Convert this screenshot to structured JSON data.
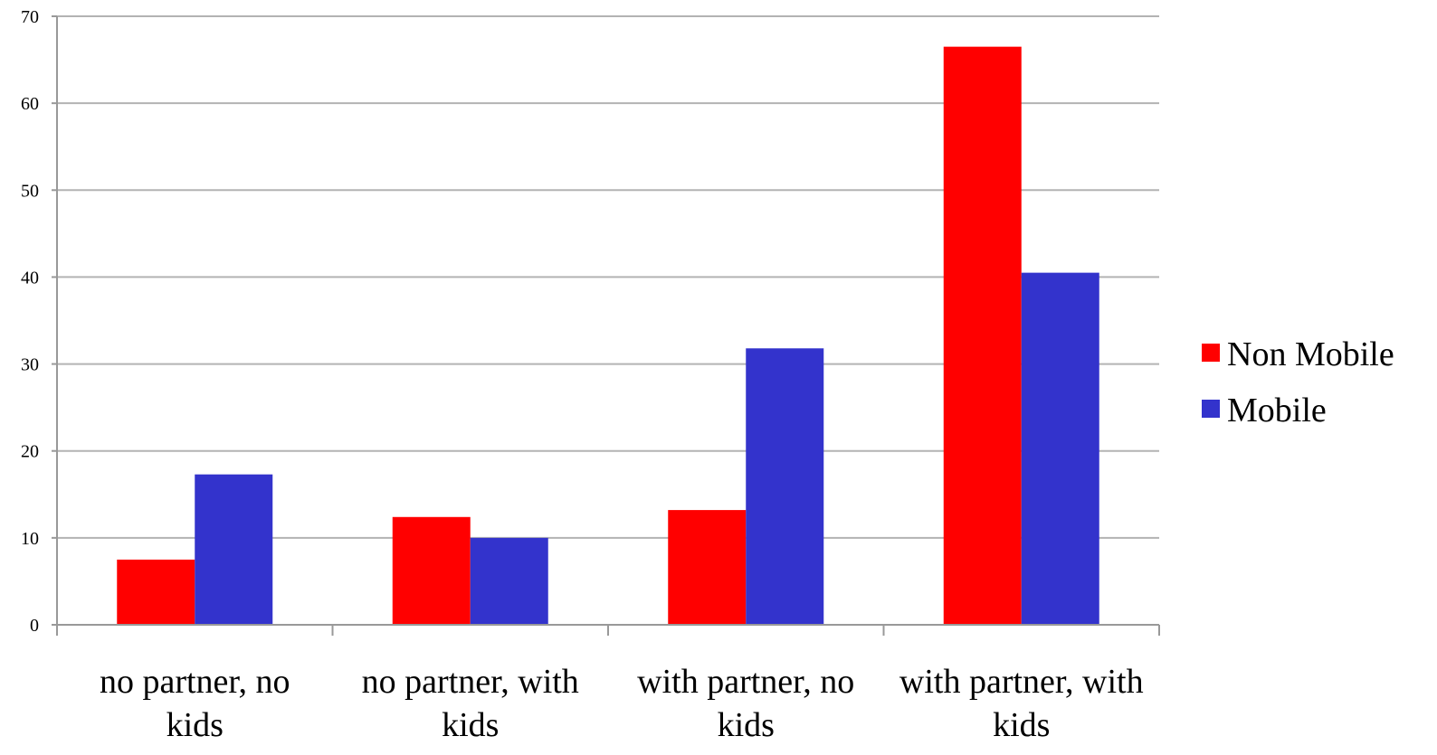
{
  "chart_data": {
    "type": "bar",
    "title": "",
    "xlabel": "",
    "ylabel": "",
    "categories": [
      [
        "no partner, no",
        "kids"
      ],
      [
        "no partner, with",
        "kids"
      ],
      [
        "with partner, no",
        "kids"
      ],
      [
        "with partner, with",
        "kids"
      ]
    ],
    "series": [
      {
        "name": "Non Mobile",
        "color": "#ff0000",
        "values": [
          7.5,
          12.4,
          13.2,
          66.5
        ]
      },
      {
        "name": "Mobile",
        "color": "#3333cc",
        "values": [
          17.3,
          10.0,
          31.8,
          40.5
        ]
      }
    ],
    "ylim": [
      0,
      70
    ],
    "yticks": [
      0,
      10,
      20,
      30,
      40,
      50,
      60,
      70
    ],
    "grid": true,
    "legend": "right"
  }
}
